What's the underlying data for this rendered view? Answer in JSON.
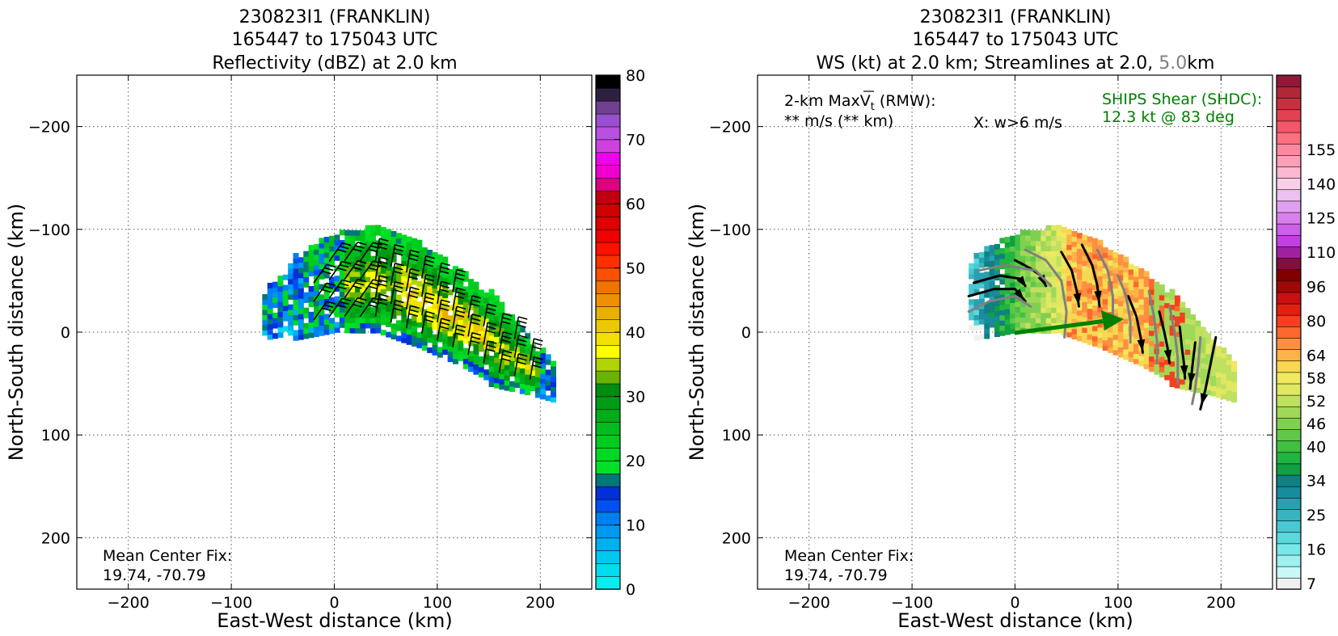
{
  "panels": [
    {
      "title_lines": [
        "230823I1 (FRANKLIN)",
        "165447 to 175043 UTC",
        "Reflectivity (dBZ) at 2.0 km"
      ],
      "xlabel": "East-West distance (km)",
      "ylabel": "North-South distance (km)",
      "xticks": [
        "−200",
        "−100",
        "0",
        "100",
        "200"
      ],
      "yticks": [
        "200",
        "100",
        "0",
        "−100",
        "−200"
      ],
      "center_fix_label": "Mean Center Fix:",
      "center_fix_value": "19.74, -70.79",
      "colorbar_ticks": [
        "80",
        "70",
        "60",
        "50",
        "40",
        "30",
        "20",
        "10",
        "0"
      ]
    },
    {
      "title_line1": "230823I1 (FRANKLIN)",
      "title_line2": "165447 to 175043 UTC",
      "title_line3_main": "WS (kt) at 2.0 km; Streamlines at 2.0,",
      "title_line3_grey": "5.0",
      "title_line3_end": "km",
      "xlabel": "East-West distance (km)",
      "ylabel": "North-South distance (km)",
      "xticks": [
        "−200",
        "−100",
        "0",
        "100",
        "200"
      ],
      "yticks": [
        "200",
        "100",
        "0",
        "−100",
        "−200"
      ],
      "maxvt_prefix": "2-km Max",
      "maxvt_symbol": "V",
      "maxvt_subscript": "t",
      "maxvt_suffix": " (RMW):",
      "maxvt_value": "** m/s (** km)",
      "updraft_note": "X: w>6 m/s",
      "shear_label": "SHIPS Shear (SHDC):",
      "shear_value": "12.3 kt @ 83 deg",
      "center_fix_label": "Mean Center Fix:",
      "center_fix_value": "19.74, -70.79",
      "colorbar_ticks": [
        "155",
        "140",
        "125",
        "110",
        "96",
        "80",
        "64",
        "58",
        "52",
        "46",
        "40",
        "34",
        "25",
        "16",
        "7"
      ]
    }
  ],
  "colors": {
    "reflectivity_scale": [
      "#00f0f0",
      "#00dcf0",
      "#00c8f0",
      "#00b0f0",
      "#0098f0",
      "#0080f0",
      "#0050f0",
      "#0030d8",
      "#007878",
      "#00e028",
      "#00d824",
      "#00cc20",
      "#00bc1c",
      "#00ac18",
      "#009c14",
      "#008c10",
      "#68b400",
      "#b0d400",
      "#ffff00",
      "#f4e000",
      "#ecc800",
      "#e8b000",
      "#f09000",
      "#f07400",
      "#ff5000",
      "#ff3000",
      "#ff1000",
      "#f00000",
      "#e00000",
      "#d00000",
      "#c00010",
      "#e00080",
      "#f000d0",
      "#f000f0",
      "#d040e0",
      "#b850e0",
      "#9850d0",
      "#704090",
      "#302040",
      "#000000"
    ],
    "windspeed_scale": [
      "#f0f0f0",
      "#c8f8f8",
      "#a0f0f0",
      "#78e8e8",
      "#5ad8dc",
      "#48c8d0",
      "#38b4c0",
      "#28a0b0",
      "#188c9c",
      "#108080",
      "#10a040",
      "#20b440",
      "#40c040",
      "#60c848",
      "#80d050",
      "#a0d858",
      "#c0e060",
      "#e0e860",
      "#f0e860",
      "#f8d850",
      "#fcb448",
      "#fc9040",
      "#fc6830",
      "#f44020",
      "#e02010",
      "#c81010",
      "#a00808",
      "#800000",
      "#801040",
      "#a020a0",
      "#c040e0",
      "#cc60e8",
      "#d880ec",
      "#e0a0f0",
      "#ecc0f0",
      "#f8d0e8",
      "#fcb8d0",
      "#fca0b8",
      "#fc88a0",
      "#fc7080",
      "#f45868",
      "#e04050",
      "#c83040",
      "#b02838",
      "#901838"
    ],
    "shear_text": "#008000",
    "grey_text": "#808080"
  },
  "chart_data": [
    {
      "type": "heatmap",
      "title": "230823I1 (FRANKLIN) 165447 to 175043 UTC Reflectivity (dBZ) at 2.0 km",
      "xlabel": "East-West distance (km)",
      "ylabel": "North-South distance (km)",
      "xlim": [
        -250,
        250
      ],
      "ylim": [
        -250,
        250
      ],
      "xticks": [
        -200,
        -100,
        0,
        100,
        200
      ],
      "yticks": [
        -200,
        -100,
        0,
        100,
        200
      ],
      "grid": true,
      "colorbar": {
        "label_values": [
          0,
          10,
          20,
          30,
          40,
          50,
          60,
          70,
          80
        ],
        "range": [
          0,
          80
        ],
        "step": 2
      },
      "overlay": "wind barbs",
      "annotations": [
        "Mean Center Fix:",
        "19.74, -70.79"
      ]
    },
    {
      "type": "heatmap",
      "title": "230823I1 (FRANKLIN) 165447 to 175043 UTC WS (kt) at 2.0 km; Streamlines at 2.0, 5.0 km",
      "xlabel": "East-West distance (km)",
      "ylabel": "North-South distance (km)",
      "xlim": [
        -250,
        250
      ],
      "ylim": [
        -250,
        250
      ],
      "xticks": [
        -200,
        -100,
        0,
        100,
        200
      ],
      "yticks": [
        -200,
        -100,
        0,
        100,
        200
      ],
      "grid": true,
      "colorbar": {
        "label_values": [
          7,
          16,
          25,
          34,
          40,
          46,
          52,
          58,
          64,
          80,
          96,
          110,
          125,
          140,
          155
        ]
      },
      "overlay": "streamlines at 2.0 km (black) and 5.0 km (grey)",
      "shear_vector": {
        "speed_kt": 12.3,
        "direction_deg": 83
      },
      "annotations": [
        "2-km MaxVt (RMW):",
        "** m/s (** km)",
        "X: w>6 m/s",
        "SHIPS Shear (SHDC):",
        "12.3 kt @ 83 deg",
        "Mean Center Fix:",
        "19.74, -70.79"
      ]
    }
  ]
}
